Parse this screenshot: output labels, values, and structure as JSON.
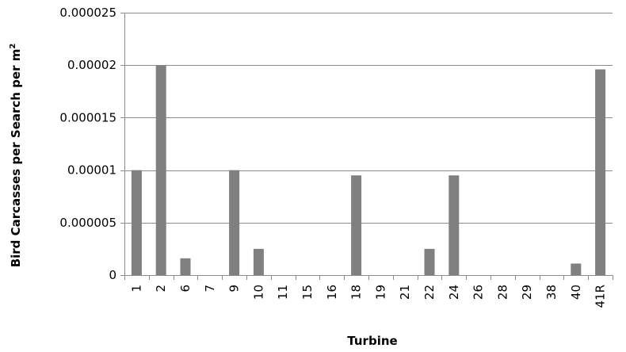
{
  "chart_data": {
    "type": "bar",
    "title": "",
    "xlabel": "Turbine",
    "ylabel": "Bird Carcasses per Search per m",
    "ylabel_superscript": "2",
    "categories": [
      "1",
      "2",
      "6",
      "7",
      "9",
      "10",
      "11",
      "15",
      "16",
      "18",
      "19",
      "21",
      "22",
      "24",
      "26",
      "28",
      "29",
      "38",
      "40",
      "41R"
    ],
    "values": [
      1e-05,
      2e-05,
      1.6e-06,
      0,
      1e-05,
      2.5e-06,
      0,
      0,
      0,
      9.5e-06,
      0,
      0,
      2.5e-06,
      9.5e-06,
      0,
      0,
      0,
      0,
      1.1e-06,
      1.96e-05
    ],
    "ylim": [
      0,
      2.5e-05
    ],
    "yticks": [
      0,
      5e-06,
      1e-05,
      1.5e-05,
      2e-05,
      2.5e-05
    ],
    "ytick_labels": [
      "0",
      "0.000005",
      "0.00001",
      "0.000015",
      "0.00002",
      "0.000025"
    ],
    "grid": true,
    "legend": "none",
    "bar_color": "#808080"
  }
}
